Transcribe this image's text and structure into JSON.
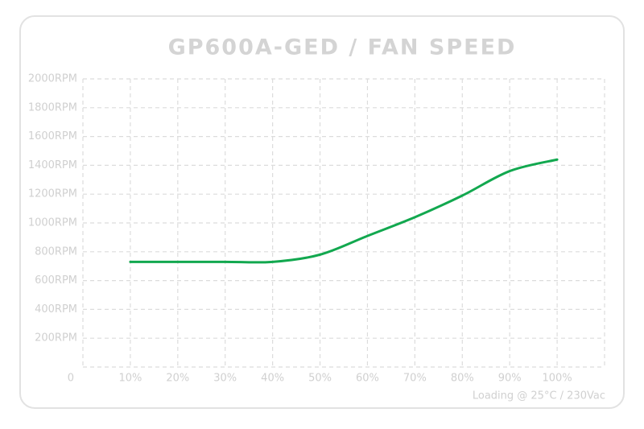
{
  "chart_data": {
    "type": "line",
    "title": "GP600A-GED / FAN SPEED",
    "note": "Loading @ 25°C / 230Vac",
    "x": [
      10,
      20,
      30,
      40,
      50,
      60,
      70,
      80,
      90,
      100
    ],
    "series": [
      {
        "color": "#12a84f",
        "values": [
          730,
          730,
          730,
          730,
          780,
          910,
          1040,
          1190,
          1360,
          1440
        ]
      }
    ],
    "xlim": [
      0,
      110
    ],
    "xticks": [
      0,
      {
        "value": 10,
        "label": "10%"
      },
      {
        "value": 20,
        "label": "20%"
      },
      {
        "value": 30,
        "label": "30%"
      },
      {
        "value": 40,
        "label": "40%"
      },
      {
        "value": 50,
        "label": "50%"
      },
      {
        "value": 60,
        "label": "60%"
      },
      {
        "value": 70,
        "label": "70%"
      },
      {
        "value": 80,
        "label": "80%"
      },
      {
        "value": 90,
        "label": "90%"
      },
      {
        "value": 100,
        "label": "100%"
      }
    ],
    "ylim": [
      0,
      2000
    ],
    "yticks": [
      {
        "value": 200,
        "label": "200RPM"
      },
      {
        "value": 400,
        "label": "400RPM"
      },
      {
        "value": 600,
        "label": "600RPM"
      },
      {
        "value": 800,
        "label": "800RPM"
      },
      {
        "value": 1000,
        "label": "1000RPM"
      },
      {
        "value": 1200,
        "label": "1200RPM"
      },
      {
        "value": 1400,
        "label": "1400RPM"
      },
      {
        "value": 1600,
        "label": "1600RPM"
      },
      {
        "value": 1800,
        "label": "1800RPM"
      },
      {
        "value": 2000,
        "label": "2000RPM"
      }
    ],
    "grid": true
  }
}
